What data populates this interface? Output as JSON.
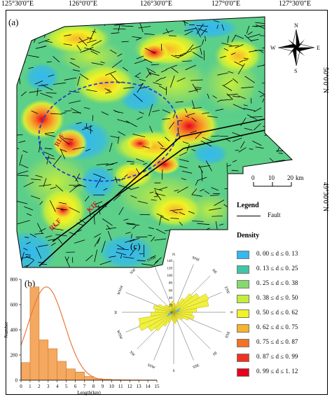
{
  "map": {
    "panel_a_label": "(a)",
    "top_coords": [
      "125°30'0\"E",
      "126°0'0\"E",
      "126°30'0\"E",
      "127°0'0\"E",
      "127°30'0\"E"
    ],
    "right_coords": [
      "50°0'0\"N",
      "49°30'0\"N"
    ],
    "fault_labels": [
      "RLF",
      "RLF",
      "KIF"
    ],
    "north_arrow": {
      "N": "N",
      "S": "S",
      "E": "E",
      "W": "W",
      "icon": "compass-rose-icon"
    },
    "scale_bar": {
      "ticks": [
        "0",
        "10",
        "20"
      ],
      "unit": "km"
    }
  },
  "legend": {
    "title": "Legend",
    "fault_label": "Fault",
    "density_title": "Density",
    "density_classes": [
      {
        "label": "0. 00  ≤  d  ≤  0. 13",
        "color": "#33b8f0"
      },
      {
        "label": "0. 13  ≤  d  ≤  0. 25",
        "color": "#3fc6a4"
      },
      {
        "label": "0. 25  ≤  d  ≤  0. 38",
        "color": "#86d96c"
      },
      {
        "label": "0. 38  ≤  d  ≤  0. 50",
        "color": "#c4ee3c"
      },
      {
        "label": "0. 50  ≤  d  ≤  0. 62",
        "color": "#f2f224"
      },
      {
        "label": "0. 62  ≤  d  ≤  0. 75",
        "color": "#f8b22e"
      },
      {
        "label": "0. 75  ≤  d  ≤  0. 87",
        "color": "#f57224"
      },
      {
        "label": "0. 87  ≤  d  ≤  0. 99",
        "color": "#ee3320"
      },
      {
        "label": "0. 99  ≤  d  ≤  1. 12",
        "color": "#e8001c"
      }
    ]
  },
  "chart_data": [
    {
      "type": "bar",
      "panel_label": "(b)",
      "xlabel": "Length(km)",
      "ylabel": "Number",
      "xlim": [
        0,
        15
      ],
      "ylim": [
        0,
        800
      ],
      "x_ticks": [
        "0",
        "1",
        "2",
        "3",
        "4",
        "5",
        "6",
        "7",
        "8",
        "9",
        "10",
        "11",
        "12",
        "13",
        "14",
        "15"
      ],
      "y_ticks": [
        "0",
        "200",
        "400",
        "600",
        "800"
      ],
      "bin_width": 1,
      "bin_starts": [
        0,
        1,
        2,
        3,
        4,
        5,
        6,
        7,
        8,
        9,
        10,
        11,
        12,
        13,
        14
      ],
      "values": [
        140,
        740,
        320,
        250,
        150,
        90,
        65,
        30,
        12,
        8,
        5,
        3,
        2,
        1,
        1
      ],
      "fit_curve": {
        "peak_x": 2.8,
        "peak_y": 740,
        "sigma": 2.0,
        "color": "#e87a3c"
      },
      "bar_color": "#f4a860"
    },
    {
      "type": "rose",
      "panel_label": "(c)",
      "radial_ticks": [
        "0",
        "20",
        "40",
        "60",
        "80",
        "100",
        "120",
        "140"
      ],
      "radial_max": 140,
      "direction_labels": [
        "N",
        "NNE",
        "NE",
        "ENE",
        "E",
        "ESE",
        "SE",
        "SSE",
        "S",
        "SSW",
        "SW",
        "WSW",
        "W",
        "WNW",
        "NW",
        "NNW"
      ],
      "sector_width_deg": 10,
      "petal_color": "#f0f040",
      "petal_inner_color": "#5ab8e0",
      "sectors": [
        {
          "azimuth": 5,
          "value": 24
        },
        {
          "azimuth": 15,
          "value": 20
        },
        {
          "azimuth": 25,
          "value": 30
        },
        {
          "azimuth": 35,
          "value": 44
        },
        {
          "azimuth": 45,
          "value": 66
        },
        {
          "azimuth": 55,
          "value": 80
        },
        {
          "azimuth": 65,
          "value": 100
        },
        {
          "azimuth": 75,
          "value": 96
        },
        {
          "azimuth": 85,
          "value": 62
        },
        {
          "azimuth": 95,
          "value": 50
        },
        {
          "azimuth": 105,
          "value": 56
        },
        {
          "azimuth": 115,
          "value": 44
        },
        {
          "azimuth": 125,
          "value": 30
        },
        {
          "azimuth": 135,
          "value": 26
        },
        {
          "azimuth": 145,
          "value": 20
        },
        {
          "azimuth": 155,
          "value": 24
        },
        {
          "azimuth": 165,
          "value": 26
        },
        {
          "azimuth": 175,
          "value": 30
        }
      ]
    }
  ]
}
